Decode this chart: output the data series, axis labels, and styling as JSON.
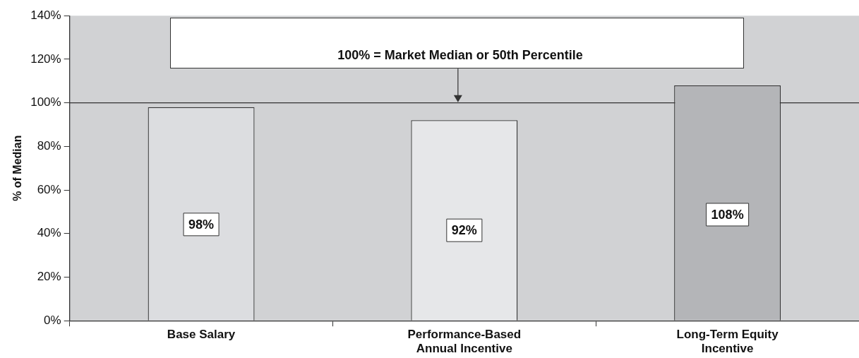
{
  "chart_data": {
    "type": "bar",
    "ylabel": "% of Median",
    "categories": [
      "Base Salary",
      "Performance-Based Annual Incentive",
      "Long-Term Equity Incentive"
    ],
    "values": [
      98,
      92,
      108
    ],
    "colors": [
      "#dcdde0",
      "#e6e7e9",
      "#b4b5b8"
    ],
    "value_labels": [
      "98%",
      "92%",
      "108%"
    ],
    "ylim": [
      0,
      140
    ],
    "yticks": [
      {
        "value": 0,
        "label": "0%"
      },
      {
        "value": 20,
        "label": "20%"
      },
      {
        "value": 40,
        "label": "40%"
      },
      {
        "value": 60,
        "label": "60%"
      },
      {
        "value": 80,
        "label": "80%"
      },
      {
        "value": 100,
        "label": "100%"
      },
      {
        "value": 120,
        "label": "120%"
      },
      {
        "value": 140,
        "label": "140%"
      }
    ],
    "ref_lines": [
      {
        "axis": "y",
        "value": 100,
        "label": "100% = Market Median or 50th Percentile",
        "color": "#333333"
      }
    ],
    "grid": false,
    "legend": false
  }
}
